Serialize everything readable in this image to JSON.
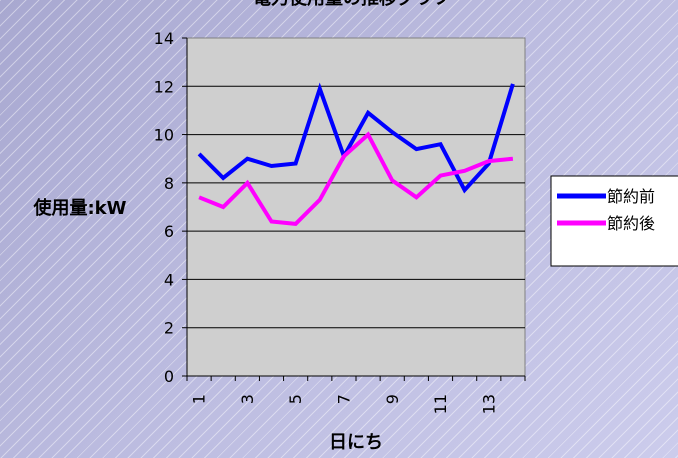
{
  "chart_data": {
    "type": "line",
    "title": "電力使用量の推移グラフ",
    "xlabel": "日にち",
    "ylabel": "使用量:kW",
    "x": [
      1,
      2,
      3,
      4,
      5,
      6,
      7,
      8,
      9,
      10,
      11,
      12,
      13,
      14
    ],
    "x_tick_labels": [
      "1",
      "3",
      "5",
      "7",
      "9",
      "11",
      "13"
    ],
    "ylim": [
      0,
      14
    ],
    "y_ticks": [
      "0",
      "2",
      "4",
      "6",
      "8",
      "10",
      "12",
      "14"
    ],
    "grid": "horizontal",
    "legend_position": "right",
    "series": [
      {
        "name": "節約前",
        "color": "#0000ff",
        "values": [
          9.2,
          8.2,
          9.0,
          8.7,
          8.8,
          11.9,
          9.1,
          10.9,
          10.1,
          9.4,
          9.6,
          7.7,
          8.8,
          12.1
        ]
      },
      {
        "name": "節約後",
        "color": "#ff00ff",
        "values": [
          7.4,
          7.0,
          8.0,
          6.4,
          6.3,
          7.3,
          9.1,
          10.0,
          8.1,
          7.4,
          8.3,
          8.5,
          8.9,
          9.0
        ]
      }
    ]
  }
}
